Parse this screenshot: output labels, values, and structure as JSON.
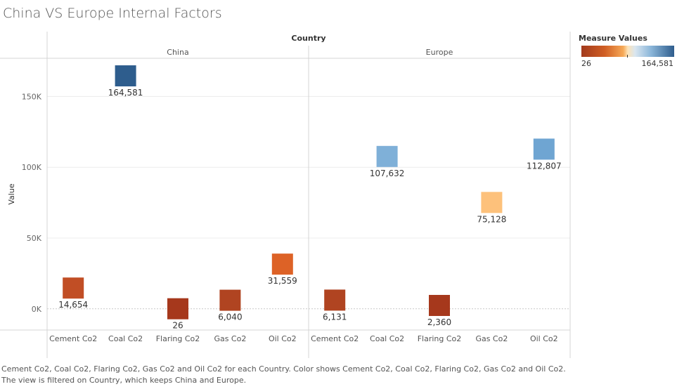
{
  "title": "China VS Europe Internal Factors",
  "legend": {
    "title": "Measure Values",
    "min_label": "26",
    "max_label": "164,581"
  },
  "footnote": {
    "line1": "Cement Co2, Coal Co2, Flaring Co2, Gas Co2 and Oil Co2 for each Country.  Color shows Cement Co2, Coal Co2, Flaring Co2, Gas Co2 and Oil Co2.",
    "line2": "The view is filtered on Country, which keeps China and Europe."
  },
  "chart_data": {
    "type": "scatter",
    "column_header": "Country",
    "ylabel": "Value",
    "ylim": [
      -15000,
      177000
    ],
    "yticks": [
      0,
      50000,
      100000,
      150000
    ],
    "ytick_labels": [
      "0K",
      "50K",
      "100K",
      "150K"
    ],
    "panels": [
      {
        "name": "China",
        "categories": [
          "Cement Co2",
          "Coal Co2",
          "Flaring Co2",
          "Gas Co2",
          "Oil Co2"
        ],
        "values": [
          14654,
          164581,
          26,
          6040,
          31559
        ],
        "labels": [
          "14,654",
          "164,581",
          "26",
          "6,040",
          "31,559"
        ],
        "colors": [
          "#c14e25",
          "#2e5d8d",
          "#a6381c",
          "#b04421",
          "#dd6226"
        ]
      },
      {
        "name": "Europe",
        "categories": [
          "Cement Co2",
          "Coal Co2",
          "Flaring Co2",
          "Gas Co2",
          "Oil Co2"
        ],
        "values": [
          6131,
          107632,
          2360,
          75128,
          112807
        ],
        "labels": [
          "6,131",
          "107,632",
          "2,360",
          "75,128",
          "112,807"
        ],
        "colors": [
          "#b04421",
          "#7fb0d8",
          "#a6381c",
          "#fdc17b",
          "#6fa5d2"
        ]
      }
    ]
  }
}
